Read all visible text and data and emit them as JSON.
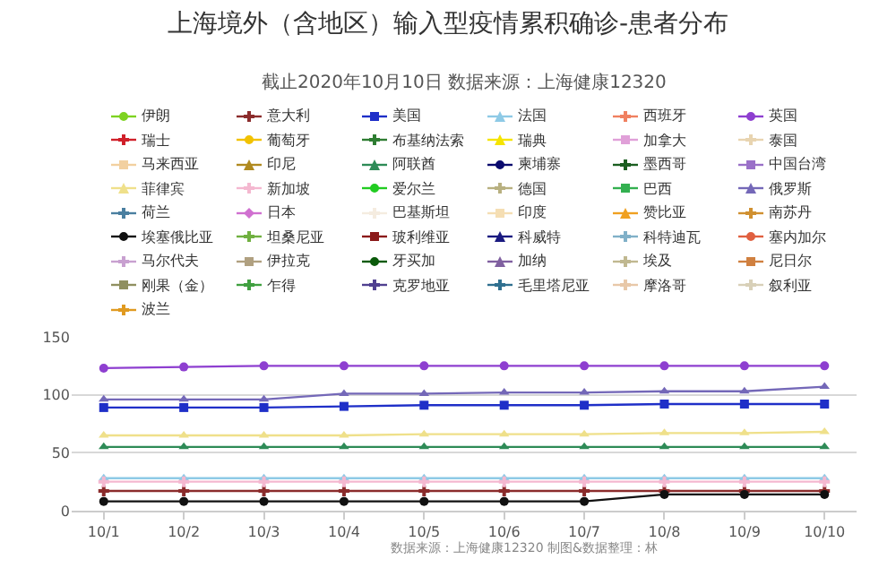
{
  "chart_data": {
    "type": "line",
    "title": "上海境外（含地区）输入型疫情累积确诊-患者分布",
    "subtitle": "截止2020年10月10日 数据来源：上海健康12320",
    "categories": [
      "10/1",
      "10/2",
      "10/3",
      "10/4",
      "10/5",
      "10/6",
      "10/7",
      "10/8",
      "10/9",
      "10/10"
    ],
    "ylim": [
      0,
      150
    ],
    "yticks": [
      0,
      50,
      100,
      150
    ],
    "grid": "y",
    "legend": "top",
    "annotations": [
      "数据来源：上海健康12320 制图&数据整理：林"
    ],
    "series": [
      {
        "name": "伊朗",
        "color": "#7ed321",
        "marker": "circle",
        "values": [
          null,
          null,
          null,
          null,
          null,
          null,
          null,
          null,
          null,
          null
        ]
      },
      {
        "name": "意大利",
        "color": "#8b2c2c",
        "marker": "cross",
        "values": [
          17,
          17,
          17,
          17,
          17,
          17,
          17,
          17,
          17,
          17
        ]
      },
      {
        "name": "美国",
        "color": "#1f2fc8",
        "marker": "square",
        "values": [
          89,
          89,
          89,
          90,
          91,
          91,
          91,
          92,
          92,
          92
        ]
      },
      {
        "name": "法国",
        "color": "#8ecae6",
        "marker": "triangle",
        "values": [
          28,
          28,
          28,
          28,
          28,
          28,
          28,
          28,
          28,
          28
        ]
      },
      {
        "name": "西班牙",
        "color": "#f08060",
        "marker": "cross",
        "values": [
          null,
          null,
          null,
          null,
          null,
          null,
          null,
          null,
          null,
          null
        ]
      },
      {
        "name": "英国",
        "color": "#8e3fd0",
        "marker": "circle",
        "values": [
          123,
          124,
          125,
          125,
          125,
          125,
          125,
          125,
          125,
          125
        ]
      },
      {
        "name": "瑞士",
        "color": "#d0202a",
        "marker": "cross",
        "values": [
          null,
          null,
          null,
          null,
          null,
          null,
          null,
          null,
          null,
          null
        ]
      },
      {
        "name": "葡萄牙",
        "color": "#f2c200",
        "marker": "circle",
        "values": [
          null,
          null,
          null,
          null,
          null,
          null,
          null,
          null,
          null,
          null
        ]
      },
      {
        "name": "布基纳法索",
        "color": "#2e7d32",
        "marker": "cross",
        "values": [
          null,
          null,
          null,
          null,
          null,
          null,
          null,
          null,
          null,
          null
        ]
      },
      {
        "name": "瑞典",
        "color": "#f5e400",
        "marker": "triangle",
        "values": [
          null,
          null,
          null,
          null,
          null,
          null,
          null,
          null,
          null,
          null
        ]
      },
      {
        "name": "加拿大",
        "color": "#e0a0d8",
        "marker": "square",
        "values": [
          null,
          null,
          null,
          null,
          null,
          null,
          null,
          null,
          null,
          null
        ]
      },
      {
        "name": "泰国",
        "color": "#e8d4b0",
        "marker": "cross",
        "values": [
          null,
          null,
          null,
          null,
          null,
          null,
          null,
          null,
          null,
          null
        ]
      },
      {
        "name": "马来西亚",
        "color": "#f2d0a0",
        "marker": "square",
        "values": [
          null,
          null,
          null,
          null,
          null,
          null,
          null,
          null,
          null,
          null
        ]
      },
      {
        "name": "印尼",
        "color": "#b08a20",
        "marker": "triangle",
        "values": [
          null,
          null,
          null,
          null,
          null,
          null,
          null,
          null,
          null,
          null
        ]
      },
      {
        "name": "阿联酋",
        "color": "#2e8b57",
        "marker": "triangle",
        "values": [
          55,
          55,
          55,
          55,
          55,
          55,
          55,
          55,
          55,
          55
        ]
      },
      {
        "name": "柬埔寨",
        "color": "#0a0a6e",
        "marker": "circle",
        "values": [
          null,
          null,
          null,
          null,
          null,
          null,
          null,
          null,
          null,
          null
        ]
      },
      {
        "name": "墨西哥",
        "color": "#1b5e20",
        "marker": "cross",
        "values": [
          null,
          null,
          null,
          null,
          null,
          null,
          null,
          null,
          null,
          null
        ]
      },
      {
        "name": "中国台湾",
        "color": "#9a70c8",
        "marker": "square",
        "values": [
          null,
          null,
          null,
          null,
          null,
          null,
          null,
          null,
          null,
          null
        ]
      },
      {
        "name": "菲律宾",
        "color": "#efe08a",
        "marker": "triangle",
        "values": [
          65,
          65,
          65,
          65,
          66,
          66,
          66,
          67,
          67,
          68
        ]
      },
      {
        "name": "新加坡",
        "color": "#f4b8d0",
        "marker": "cross",
        "values": [
          25,
          25,
          25,
          25,
          25,
          25,
          25,
          25,
          25,
          25
        ]
      },
      {
        "name": "爱尔兰",
        "color": "#22cc22",
        "marker": "circle",
        "values": [
          null,
          null,
          null,
          null,
          null,
          null,
          null,
          null,
          null,
          null
        ]
      },
      {
        "name": "德国",
        "color": "#b8b080",
        "marker": "cross",
        "values": [
          null,
          null,
          null,
          null,
          null,
          null,
          null,
          null,
          null,
          null
        ]
      },
      {
        "name": "巴西",
        "color": "#33b050",
        "marker": "square",
        "values": [
          null,
          null,
          null,
          null,
          null,
          null,
          null,
          null,
          null,
          null
        ]
      },
      {
        "name": "俄罗斯",
        "color": "#7468b8",
        "marker": "triangle",
        "values": [
          96,
          96,
          96,
          101,
          101,
          102,
          102,
          103,
          103,
          107
        ]
      },
      {
        "name": "荷兰",
        "color": "#4a7fa0",
        "marker": "cross",
        "values": [
          null,
          null,
          null,
          null,
          null,
          null,
          null,
          null,
          null,
          null
        ]
      },
      {
        "name": "日本",
        "color": "#d070d0",
        "marker": "diamond",
        "values": [
          null,
          null,
          null,
          null,
          null,
          null,
          null,
          null,
          null,
          null
        ]
      },
      {
        "name": "巴基斯坦",
        "color": "#f5ece0",
        "marker": "cross",
        "values": [
          null,
          null,
          null,
          null,
          null,
          null,
          null,
          null,
          null,
          null
        ]
      },
      {
        "name": "印度",
        "color": "#f5deb3",
        "marker": "square",
        "values": [
          null,
          null,
          null,
          null,
          null,
          null,
          null,
          null,
          null,
          null
        ]
      },
      {
        "name": "赞比亚",
        "color": "#f0a020",
        "marker": "triangle",
        "values": [
          null,
          null,
          null,
          null,
          null,
          null,
          null,
          null,
          null,
          null
        ]
      },
      {
        "name": "南苏丹",
        "color": "#d09030",
        "marker": "cross",
        "values": [
          null,
          null,
          null,
          null,
          null,
          null,
          null,
          null,
          null,
          null
        ]
      },
      {
        "name": "埃塞俄比亚",
        "color": "#111111",
        "marker": "circle",
        "values": [
          8,
          8,
          8,
          8,
          8,
          8,
          8,
          14,
          14,
          14
        ]
      },
      {
        "name": "坦桑尼亚",
        "color": "#70b040",
        "marker": "cross",
        "values": [
          null,
          null,
          null,
          null,
          null,
          null,
          null,
          null,
          null,
          null
        ]
      },
      {
        "name": "玻利维亚",
        "color": "#8b1a1a",
        "marker": "square",
        "values": [
          null,
          null,
          null,
          null,
          null,
          null,
          null,
          null,
          null,
          null
        ]
      },
      {
        "name": "科威特",
        "color": "#1a1a80",
        "marker": "triangle",
        "values": [
          null,
          null,
          null,
          null,
          null,
          null,
          null,
          null,
          null,
          null
        ]
      },
      {
        "name": "科特迪瓦",
        "color": "#80b0c8",
        "marker": "cross",
        "values": [
          null,
          null,
          null,
          null,
          null,
          null,
          null,
          null,
          null,
          null
        ]
      },
      {
        "name": "塞内加尔",
        "color": "#e06040",
        "marker": "circle",
        "values": [
          null,
          null,
          null,
          null,
          null,
          null,
          null,
          null,
          null,
          null
        ]
      },
      {
        "name": "马尔代夫",
        "color": "#c8a0d0",
        "marker": "cross",
        "values": [
          null,
          null,
          null,
          null,
          null,
          null,
          null,
          null,
          null,
          null
        ]
      },
      {
        "name": "伊拉克",
        "color": "#b0a080",
        "marker": "square",
        "values": [
          null,
          null,
          null,
          null,
          null,
          null,
          null,
          null,
          null,
          null
        ]
      },
      {
        "name": "牙买加",
        "color": "#0a5a0a",
        "marker": "circle",
        "values": [
          null,
          null,
          null,
          null,
          null,
          null,
          null,
          null,
          null,
          null
        ]
      },
      {
        "name": "加纳",
        "color": "#8060a0",
        "marker": "triangle",
        "values": [
          null,
          null,
          null,
          null,
          null,
          null,
          null,
          null,
          null,
          null
        ]
      },
      {
        "name": "埃及",
        "color": "#c0b890",
        "marker": "cross",
        "values": [
          null,
          null,
          null,
          null,
          null,
          null,
          null,
          null,
          null,
          null
        ]
      },
      {
        "name": "尼日尔",
        "color": "#d08040",
        "marker": "square",
        "values": [
          null,
          null,
          null,
          null,
          null,
          null,
          null,
          null,
          null,
          null
        ]
      },
      {
        "name": "刚果（金）",
        "color": "#909060",
        "marker": "square",
        "values": [
          null,
          null,
          null,
          null,
          null,
          null,
          null,
          null,
          null,
          null
        ]
      },
      {
        "name": "乍得",
        "color": "#40a040",
        "marker": "cross",
        "values": [
          null,
          null,
          null,
          null,
          null,
          null,
          null,
          null,
          null,
          null
        ]
      },
      {
        "name": "克罗地亚",
        "color": "#504090",
        "marker": "cross",
        "values": [
          null,
          null,
          null,
          null,
          null,
          null,
          null,
          null,
          null,
          null
        ]
      },
      {
        "name": "毛里塔尼亚",
        "color": "#307090",
        "marker": "cross",
        "values": [
          null,
          null,
          null,
          null,
          null,
          null,
          null,
          null,
          null,
          null
        ]
      },
      {
        "name": "摩洛哥",
        "color": "#e8c8a8",
        "marker": "cross",
        "values": [
          null,
          null,
          null,
          null,
          null,
          null,
          null,
          null,
          null,
          null
        ]
      },
      {
        "name": "叙利亚",
        "color": "#d8d0b8",
        "marker": "cross",
        "values": [
          null,
          null,
          null,
          null,
          null,
          null,
          null,
          null,
          null,
          null
        ]
      },
      {
        "name": "波兰",
        "color": "#e09a20",
        "marker": "cross",
        "values": [
          null,
          null,
          null,
          null,
          null,
          null,
          null,
          null,
          null,
          null
        ]
      }
    ]
  }
}
